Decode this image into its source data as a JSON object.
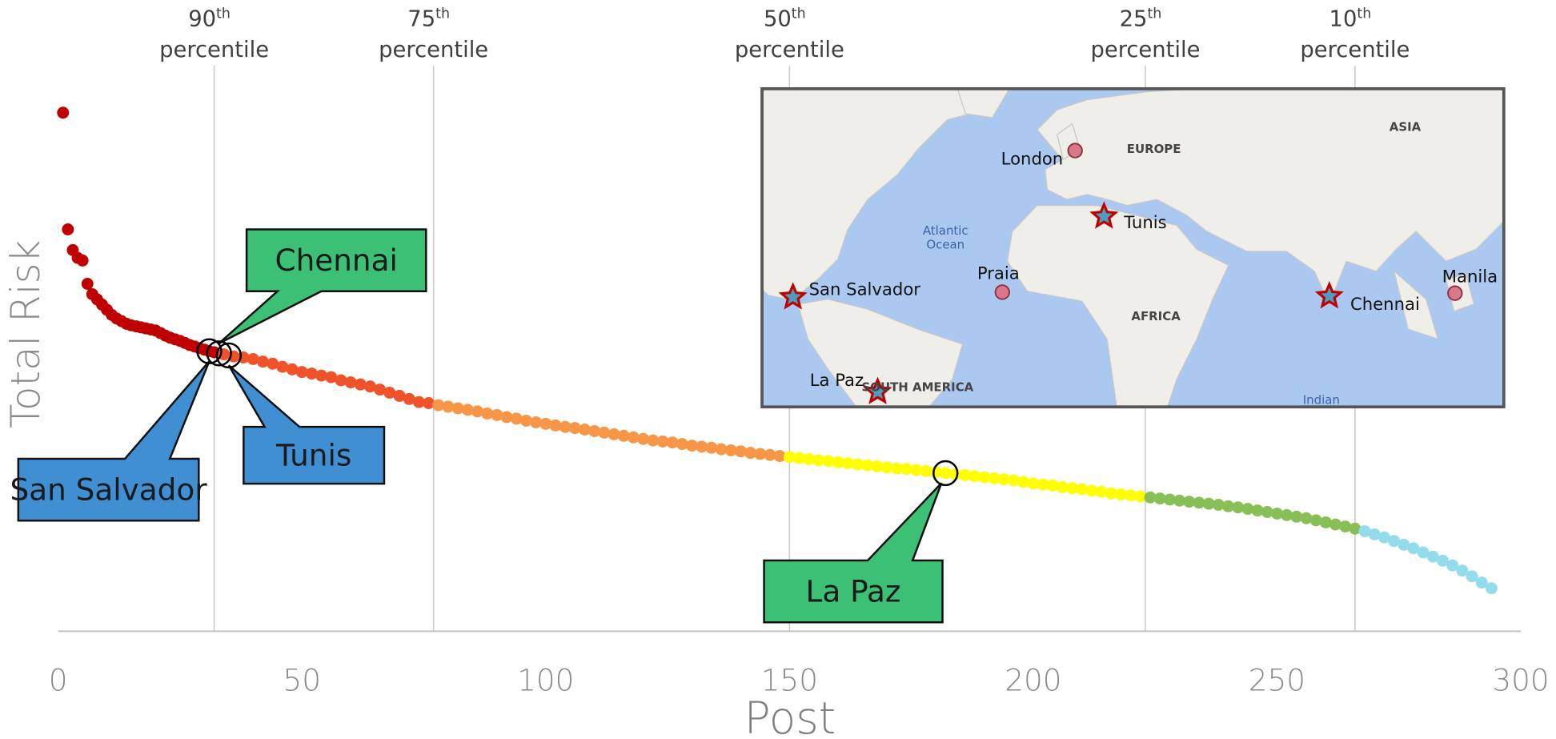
{
  "chart_data": {
    "type": "scatter",
    "x_label": "Post",
    "y_label": "Total Risk",
    "xlim": [
      0,
      300
    ],
    "xticks": [
      0,
      50,
      100,
      150,
      200,
      250,
      300
    ],
    "ylim": [
      0,
      100
    ],
    "series": [
      {
        "color": "#c00000",
        "x": [
          1,
          2,
          3,
          4,
          5,
          6,
          7,
          8,
          9,
          10,
          11,
          12,
          13,
          14,
          15,
          16,
          17,
          18,
          19,
          20,
          21,
          22,
          23,
          24,
          25,
          26,
          27,
          28,
          29,
          30,
          31,
          32
        ],
        "values": [
          100,
          77.5,
          73.5,
          72,
          71.5,
          67,
          65,
          64,
          63,
          62,
          61,
          60.3,
          59.8,
          59.3,
          59,
          58.8,
          58.6,
          58.4,
          58.2,
          58,
          57.5,
          57,
          56.6,
          56.3,
          56,
          55.6,
          55.2,
          54.9,
          54.6,
          54.3,
          54,
          53.8
        ]
      },
      {
        "color": "#f0522a",
        "x": [
          34,
          36,
          38,
          40,
          42,
          44,
          46,
          48,
          50,
          52,
          54,
          56,
          58,
          60,
          62,
          64,
          66,
          68,
          70,
          72,
          74,
          76
        ],
        "values": [
          53.4,
          53,
          52.8,
          52.5,
          52,
          51.6,
          51,
          50.5,
          50,
          49.7,
          49.3,
          49,
          48.4,
          48,
          47.6,
          47.2,
          46.6,
          46,
          45.4,
          44.8,
          44.2,
          44
        ]
      },
      {
        "color": "#f79646",
        "x": [
          78,
          80,
          82,
          84,
          86,
          88,
          90,
          92,
          94,
          96,
          98,
          100,
          102,
          104,
          106,
          108,
          110,
          112,
          114,
          116,
          118,
          120,
          122,
          124,
          126,
          128,
          130,
          132,
          134,
          136,
          138,
          140,
          142,
          144,
          146,
          148
        ],
        "values": [
          43.6,
          43.3,
          43,
          42.7,
          42.4,
          42,
          41.7,
          41.3,
          41,
          40.6,
          40.3,
          40,
          39.7,
          39.4,
          39.2,
          38.9,
          38.6,
          38.3,
          38,
          37.7,
          37.4,
          37.1,
          36.8,
          36.6,
          36.4,
          36.1,
          35.8,
          35.6,
          35.4,
          35.1,
          34.9,
          34.7,
          34.4,
          34.2,
          34,
          33.8
        ]
      },
      {
        "color": "#ffff00",
        "x": [
          150,
          152,
          154,
          156,
          158,
          160,
          162,
          164,
          166,
          168,
          170,
          172,
          174,
          176,
          178,
          180,
          182,
          184,
          186,
          188,
          190,
          192,
          194,
          196,
          198,
          200,
          202,
          204,
          206,
          208,
          210,
          212,
          214,
          216,
          218,
          220,
          222
        ],
        "values": [
          33.6,
          33.4,
          33.2,
          33,
          32.8,
          32.6,
          32.4,
          32.2,
          32,
          31.8,
          31.6,
          31.4,
          31.3,
          31.1,
          30.9,
          30.7,
          30.5,
          30.3,
          30.1,
          29.9,
          29.7,
          29.5,
          29.3,
          29.1,
          28.8,
          28.5,
          28.3,
          28.1,
          27.8,
          27.6,
          27.4,
          27.1,
          26.9,
          26.6,
          26.4,
          26.2,
          26
        ]
      },
      {
        "color": "#88c057",
        "x": [
          224,
          226,
          228,
          230,
          232,
          234,
          236,
          238,
          240,
          242,
          244,
          246,
          248,
          250,
          252,
          254,
          256,
          258,
          260,
          262,
          264,
          266
        ],
        "values": [
          25.8,
          25.6,
          25.4,
          25.2,
          25,
          24.8,
          24.6,
          24.4,
          24.1,
          23.9,
          23.6,
          23.3,
          23,
          22.7,
          22.4,
          22.1,
          21.8,
          21.4,
          21,
          20.6,
          20.2,
          19.8
        ]
      },
      {
        "color": "#93dceb",
        "x": [
          268,
          270,
          272,
          274,
          276,
          278,
          280,
          282,
          284,
          286,
          288,
          290,
          292,
          294
        ],
        "values": [
          19.3,
          18.7,
          18.1,
          17.4,
          16.7,
          16,
          15.2,
          14.4,
          13.6,
          12.7,
          11.7,
          10.6,
          9.4,
          8.3
        ]
      }
    ],
    "percentiles": [
      {
        "x": 32,
        "number": "90",
        "ordinal": "th",
        "label": "percentile"
      },
      {
        "x": 77,
        "number": "75",
        "ordinal": "th",
        "label": "percentile"
      },
      {
        "x": 150,
        "number": "50",
        "ordinal": "th",
        "label": "percentile"
      },
      {
        "x": 223,
        "number": "25",
        "ordinal": "th",
        "label": "percentile"
      },
      {
        "x": 266,
        "number": "10",
        "ordinal": "th",
        "label": "percentile"
      }
    ],
    "callouts": [
      {
        "label": "Chennai",
        "x": 33,
        "y": 53.6,
        "color": "#3cc076"
      },
      {
        "label": "Tunis",
        "x": 35,
        "y": 53.2,
        "color": "#3f8fd2"
      },
      {
        "label": "San Salvador",
        "x": 31,
        "y": 54,
        "color": "#3f8fd2"
      },
      {
        "label": "La Paz",
        "x": 182,
        "y": 30.5,
        "color": "#3cc076"
      }
    ]
  },
  "map": {
    "places": [
      {
        "name": "London",
        "marker": "circle"
      },
      {
        "name": "Tunis",
        "marker": "star"
      },
      {
        "name": "Praia",
        "marker": "circle"
      },
      {
        "name": "San Salvador",
        "marker": "star"
      },
      {
        "name": "Chennai",
        "marker": "star"
      },
      {
        "name": "Manila",
        "marker": "circle"
      },
      {
        "name": "La Paz",
        "marker": "star"
      }
    ],
    "regions": [
      "EUROPE",
      "ASIA",
      "AFRICA",
      "SOUTH AMERICA"
    ],
    "waters": [
      "Atlantic",
      "Ocean",
      "Indian"
    ]
  }
}
